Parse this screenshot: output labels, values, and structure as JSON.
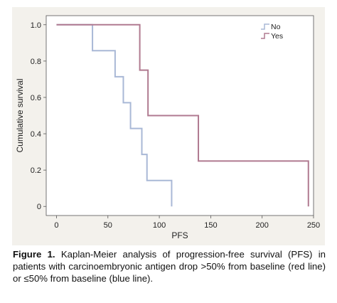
{
  "chart_data": {
    "type": "line",
    "step": true,
    "xlabel": "PFS",
    "ylabel": "Cumulative survival",
    "xlim": [
      -10,
      250
    ],
    "ylim": [
      -0.05,
      1.05
    ],
    "xticks": [
      0,
      50,
      100,
      150,
      200,
      250
    ],
    "yticks": [
      0,
      0.2,
      0.4,
      0.6,
      0.8,
      1.0
    ],
    "ytick_labels": [
      "0",
      "0.2",
      "0.4",
      "0.6",
      "0.8",
      "1.0"
    ],
    "grid": false,
    "legend_position": "top-right",
    "series": [
      {
        "name": "No",
        "color": "#a9b8d6",
        "x": [
          0,
          35,
          57,
          65,
          72,
          83,
          88,
          112
        ],
        "y": [
          1.0,
          0.857,
          0.714,
          0.571,
          0.429,
          0.286,
          0.143,
          0
        ]
      },
      {
        "name": "Yes",
        "color": "#b07a90",
        "x": [
          0,
          81,
          89,
          138,
          245
        ],
        "y": [
          1.0,
          0.75,
          0.5,
          0.25,
          0
        ]
      }
    ]
  },
  "caption": {
    "label": "Figure 1.",
    "text": " Kaplan-Meier analysis of progression-free survival (PFS) in patients with carcinoembryonic antigen drop >50% from baseline (red line) or ≤50% from baseline (blue line)."
  }
}
